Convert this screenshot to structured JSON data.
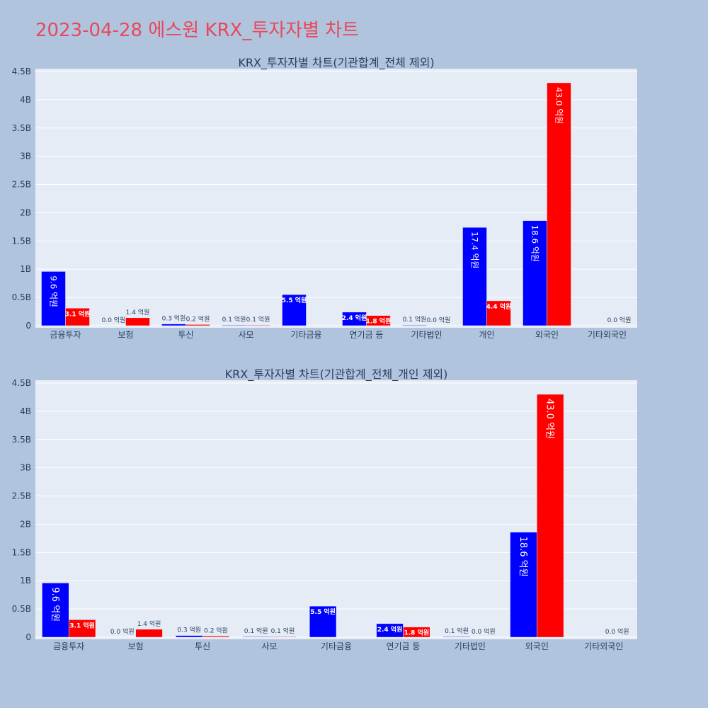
{
  "page": {
    "title": "2023-04-28 에스원 KRX_투자자별 차트"
  },
  "chart_data": [
    {
      "type": "bar",
      "title": "KRX_투자자별 차트(기관합계_전체 제외)",
      "categories": [
        "금융투자",
        "보험",
        "투신",
        "사모",
        "기타금융",
        "연기금 등",
        "기타법인",
        "개인",
        "외국인",
        "기타외국인"
      ],
      "ylim": [
        0,
        4500000000
      ],
      "yticks": [
        0,
        500000000,
        1000000000,
        1500000000,
        2000000000,
        2500000000,
        3000000000,
        3500000000,
        4000000000,
        4500000000
      ],
      "ytick_labels": [
        "0",
        "0.5B",
        "1B",
        "1.5B",
        "2B",
        "2.5B",
        "3B",
        "3.5B",
        "4B",
        "4.5B"
      ],
      "grid": true,
      "series": [
        {
          "color": "#0000ff",
          "values": [
            960000000,
            0,
            30000000,
            10000000,
            550000000,
            240000000,
            10000000,
            1740000000,
            1860000000,
            null
          ],
          "labels": [
            "9.6 억원",
            "0.0 억원",
            "0.3 억원",
            "0.1 억원",
            "5.5 억원",
            "2.4 억원",
            "0.1 억원",
            "17.4 억원",
            "18.6 억원",
            ""
          ]
        },
        {
          "color": "#ff0000",
          "values": [
            310000000,
            140000000,
            20000000,
            10000000,
            null,
            180000000,
            0,
            440000000,
            4300000000,
            0
          ],
          "labels": [
            "3.1 억원",
            "1.4 억원",
            "0.2 억원",
            "0.1 억원",
            "",
            "1.8 억원",
            "0.0 억원",
            "4.4 억원",
            "43.0 억원",
            "0.0 억원"
          ]
        }
      ]
    },
    {
      "type": "bar",
      "title": "KRX_투자자별 차트(기관합계_전체_개인 제외)",
      "categories": [
        "금융투자",
        "보험",
        "투신",
        "사모",
        "기타금융",
        "연기금 등",
        "기타법인",
        "외국인",
        "기타외국인"
      ],
      "ylim": [
        0,
        4500000000
      ],
      "yticks": [
        0,
        500000000,
        1000000000,
        1500000000,
        2000000000,
        2500000000,
        3000000000,
        3500000000,
        4000000000,
        4500000000
      ],
      "ytick_labels": [
        "0",
        "0.5B",
        "1B",
        "1.5B",
        "2B",
        "2.5B",
        "3B",
        "3.5B",
        "4B",
        "4.5B"
      ],
      "grid": true,
      "series": [
        {
          "color": "#0000ff",
          "values": [
            960000000,
            0,
            30000000,
            10000000,
            550000000,
            240000000,
            10000000,
            1860000000,
            null
          ],
          "labels": [
            "9.6 억원",
            "0.0 억원",
            "0.3 억원",
            "0.1 억원",
            "5.5 억원",
            "2.4 억원",
            "0.1 억원",
            "18.6 억원",
            ""
          ]
        },
        {
          "color": "#ff0000",
          "values": [
            310000000,
            140000000,
            20000000,
            10000000,
            null,
            180000000,
            0,
            4300000000,
            0
          ],
          "labels": [
            "3.1 억원",
            "1.4 억원",
            "0.2 억원",
            "0.1 억원",
            "",
            "1.8 억원",
            "0.0 억원",
            "43.0 억원",
            "0.0 억원"
          ]
        }
      ]
    }
  ]
}
